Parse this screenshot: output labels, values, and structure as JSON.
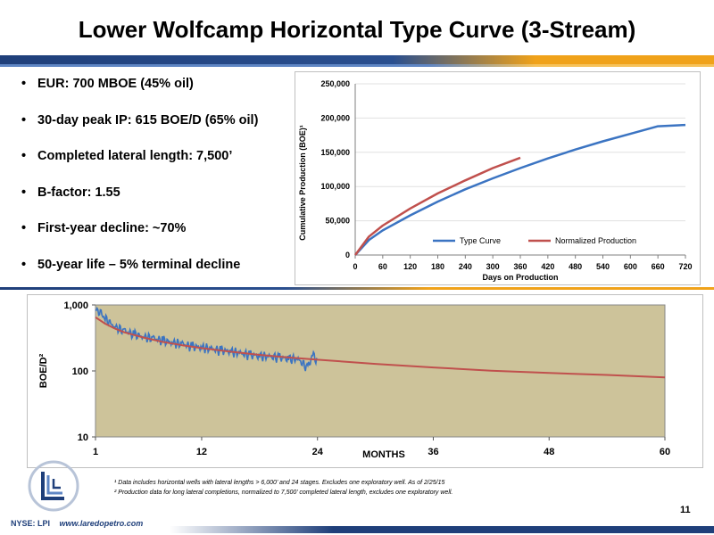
{
  "title": "Lower Wolfcamp Horizontal Type Curve (3-Stream)",
  "bullets": [
    "EUR: 700 MBOE (45% oil)",
    "30-day peak IP: 615 BOE/D (65% oil)",
    "Completed lateral length: 7,500’",
    "B-factor: 1.55",
    "First-year decline: ~70%",
    "50-year life – 5% terminal decline"
  ],
  "footnotes": [
    "¹ Data includes horizontal wells with lateral lengths > 6,000’ and 24 stages. Excludes one exploratory well. As of 2/25/15",
    "² Production data for long lateral completions, normalized to 7,500’ completed lateral length, excludes one exploratory well."
  ],
  "page_number": "11",
  "footer": {
    "ticker": "NYSE: LPI",
    "website": "www.laredopetro.com"
  },
  "colors": {
    "navy": "#1f3f7a",
    "gold": "#f0a21a",
    "series_blue": "#3b74c2",
    "series_red": "#c0504d",
    "plot_bg": "#cdc39a"
  },
  "chart_data": [
    {
      "type": "line",
      "title": "",
      "xlabel": "Days on Production",
      "ylabel": "Cumulative Production (BOE)¹",
      "xlim": [
        0,
        720
      ],
      "ylim": [
        0,
        250000
      ],
      "x_ticks": [
        "0",
        "60",
        "120",
        "180",
        "240",
        "300",
        "360",
        "420",
        "480",
        "540",
        "600",
        "660",
        "720"
      ],
      "y_ticks": [
        "0",
        "50,000",
        "100,000",
        "150,000",
        "200,000",
        "250,000"
      ],
      "legend_position": "bottom-inside",
      "series": [
        {
          "name": "Type Curve",
          "color": "#3b74c2",
          "x": [
            0,
            30,
            60,
            120,
            180,
            240,
            300,
            360,
            420,
            480,
            540,
            600,
            660,
            720
          ],
          "values": [
            0,
            22000,
            36000,
            58000,
            78000,
            96000,
            112000,
            127000,
            141000,
            154000,
            166000,
            177000,
            188000,
            190000
          ]
        },
        {
          "name": "Normalized Production",
          "color": "#c0504d",
          "x": [
            0,
            30,
            60,
            120,
            180,
            240,
            300,
            360
          ],
          "values": [
            0,
            27000,
            43000,
            68000,
            90000,
            109000,
            127000,
            142000
          ]
        }
      ]
    },
    {
      "type": "line",
      "title": "",
      "xlabel": "MONTHS",
      "ylabel": "BOE/D²",
      "y_scale": "log",
      "xlim": [
        1,
        60
      ],
      "ylim": [
        10,
        1000
      ],
      "x_ticks": [
        "1",
        "12",
        "24",
        "36",
        "48",
        "60"
      ],
      "y_ticks": [
        "10",
        "100",
        "1,000"
      ],
      "series": [
        {
          "name": "",
          "color": "#c0504d",
          "x": [
            1,
            2,
            3,
            4,
            6,
            8,
            10,
            12,
            15,
            18,
            21,
            24,
            30,
            36,
            42,
            48,
            54,
            60
          ],
          "values": [
            650,
            520,
            440,
            385,
            320,
            275,
            245,
            222,
            196,
            175,
            160,
            148,
            128,
            113,
            101,
            93,
            87,
            80
          ]
        },
        {
          "name": "",
          "color": "#3b74c2",
          "x": [
            1,
            1.5,
            2,
            3,
            4,
            5,
            6,
            7,
            8,
            9,
            10,
            11,
            12,
            13,
            14,
            15,
            16,
            17,
            18,
            19,
            20,
            21,
            22,
            23,
            23.5,
            24
          ],
          "values": [
            850,
            780,
            620,
            470,
            400,
            360,
            330,
            310,
            290,
            270,
            255,
            235,
            230,
            215,
            205,
            200,
            185,
            175,
            170,
            165,
            160,
            155,
            150,
            110,
            180,
            140
          ]
        }
      ]
    }
  ]
}
